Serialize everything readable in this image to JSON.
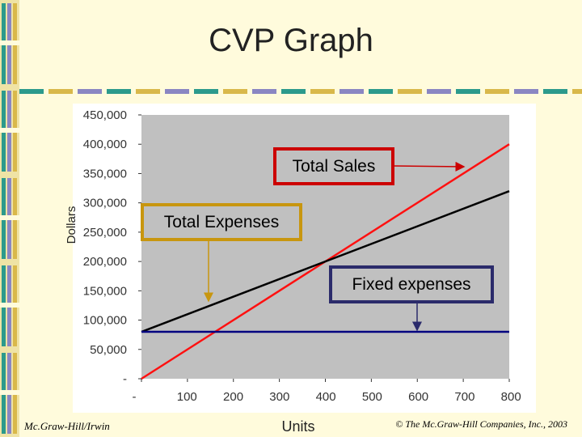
{
  "slide": {
    "title": "CVP Graph",
    "footer_left": "Mc.Graw-Hill/Irwin",
    "footer_right": "© The Mc.Graw-Hill Companies, Inc., 2003"
  },
  "colors": {
    "background": "#fffbdc",
    "plot_area": "#c0c0c0",
    "sales_line": "#ff1010",
    "expenses_line": "#000000",
    "fixed_line": "#000080",
    "box_sales_border": "#cc0000",
    "box_expenses_border": "#c8960f",
    "box_fixed_border": "#2b2b6b"
  },
  "chart_data": {
    "type": "line",
    "title": "",
    "xlabel": "Units",
    "ylabel": "Dollars",
    "x_ticks": [
      "-",
      "100",
      "200",
      "300",
      "400",
      "500",
      "600",
      "700",
      "800"
    ],
    "y_ticks": [
      "-",
      "50,000",
      "100,000",
      "150,000",
      "200,000",
      "250,000",
      "300,000",
      "350,000",
      "400,000",
      "450,000"
    ],
    "xlim": [
      0,
      800
    ],
    "ylim": [
      0,
      450000
    ],
    "grid": false,
    "series": [
      {
        "name": "Total Sales",
        "x": [
          0,
          800
        ],
        "y": [
          0,
          400000
        ]
      },
      {
        "name": "Total Expenses",
        "x": [
          0,
          800
        ],
        "y": [
          80000,
          320000
        ]
      },
      {
        "name": "Fixed expenses",
        "x": [
          0,
          800
        ],
        "y": [
          80000,
          80000
        ]
      }
    ],
    "annotations": [
      {
        "text": "Total Sales",
        "series": "Total Sales"
      },
      {
        "text": "Total Expenses",
        "series": "Total Expenses"
      },
      {
        "text": "Fixed expenses",
        "series": "Fixed expenses"
      }
    ]
  }
}
